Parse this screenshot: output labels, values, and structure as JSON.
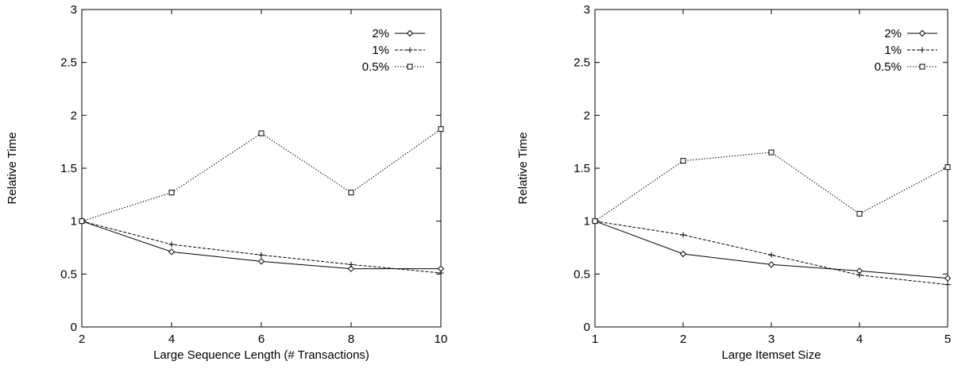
{
  "chart_data": [
    {
      "type": "line",
      "xlabel": "Large Sequence Length (# Transactions)",
      "ylabel": "Relative Time",
      "x": [
        2,
        4,
        6,
        8,
        10
      ],
      "xlim": [
        2,
        10
      ],
      "ylim": [
        0,
        3
      ],
      "xticks": [
        "2",
        "4",
        "6",
        "8",
        "10"
      ],
      "yticks": [
        "0",
        "0.5",
        "1",
        "1.5",
        "2",
        "2.5",
        "3"
      ],
      "legend_position": "top-right",
      "grid": false,
      "series": [
        {
          "name": "2%",
          "marker": "diamond",
          "dash": "solid",
          "values": [
            1.0,
            0.71,
            0.62,
            0.55,
            0.55
          ]
        },
        {
          "name": "1%",
          "marker": "plus",
          "dash": "dashed",
          "values": [
            1.0,
            0.78,
            0.68,
            0.59,
            0.51
          ]
        },
        {
          "name": "0.5%",
          "marker": "square",
          "dash": "dotted",
          "values": [
            1.0,
            1.27,
            1.83,
            1.27,
            1.87
          ]
        }
      ]
    },
    {
      "type": "line",
      "xlabel": "Large Itemset Size",
      "ylabel": "Relative Time",
      "x": [
        1,
        2,
        3,
        4,
        5
      ],
      "xlim": [
        1,
        5
      ],
      "ylim": [
        0,
        3
      ],
      "xticks": [
        "1",
        "2",
        "3",
        "4",
        "5"
      ],
      "yticks": [
        "0",
        "0.5",
        "1",
        "1.5",
        "2",
        "2.5",
        "3"
      ],
      "legend_position": "top-right",
      "grid": false,
      "series": [
        {
          "name": "2%",
          "marker": "diamond",
          "dash": "solid",
          "values": [
            1.0,
            0.69,
            0.59,
            0.53,
            0.46
          ]
        },
        {
          "name": "1%",
          "marker": "plus",
          "dash": "dashed",
          "values": [
            1.0,
            0.87,
            0.68,
            0.49,
            0.4
          ]
        },
        {
          "name": "0.5%",
          "marker": "square",
          "dash": "dotted",
          "values": [
            1.0,
            1.57,
            1.65,
            1.07,
            1.51
          ]
        }
      ]
    }
  ]
}
